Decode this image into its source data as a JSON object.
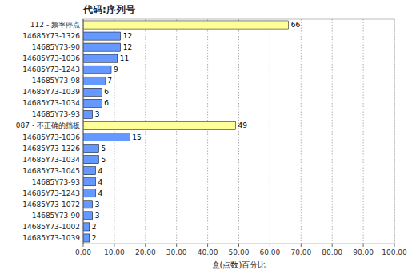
{
  "chart_data": {
    "type": "bar",
    "orientation": "horizontal",
    "title": "代码:序列号",
    "x_label": "盒(点数)百分比",
    "categories": [
      "112 - 频率停点",
      "14685Y73-1326",
      "14685Y73-90",
      "14685Y73-1036",
      "14685Y73-1243",
      "14685Y73-98",
      "14685Y73-1039",
      "14685Y73-1034",
      "14685Y73-93",
      "087 - 不正确的挡板",
      "14685Y73-1036",
      "14685Y73-1326",
      "14685Y73-1034",
      "14685Y73-1045",
      "14685Y73-93",
      "14685Y73-1243",
      "14685Y73-1072",
      "14685Y73-90",
      "14685Y73-1002",
      "14685Y73-1039"
    ],
    "values": [
      66,
      12,
      12,
      11,
      9,
      7,
      6,
      6,
      3,
      49,
      15,
      5,
      5,
      4,
      4,
      4,
      3,
      3,
      2,
      2
    ],
    "colors": [
      "#FFFF99",
      "#6699FF",
      "#6699FF",
      "#6699FF",
      "#6699FF",
      "#6699FF",
      "#6699FF",
      "#6699FF",
      "#6699FF",
      "#FFFF99",
      "#6699FF",
      "#6699FF",
      "#6699FF",
      "#6699FF",
      "#6699FF",
      "#6699FF",
      "#6699FF",
      "#6699FF",
      "#6699FF",
      "#6699FF"
    ],
    "xlim": [
      0,
      100
    ],
    "xticks": [
      {
        "value": 0,
        "label": "0.00"
      },
      {
        "value": 10,
        "label": "10.00"
      },
      {
        "value": 20,
        "label": "20.00"
      },
      {
        "value": 30,
        "label": "30.00"
      },
      {
        "value": 40,
        "label": "40.00"
      },
      {
        "value": 50,
        "label": "50.00"
      },
      {
        "value": 60,
        "label": "60.00"
      },
      {
        "value": 70,
        "label": "70.00"
      },
      {
        "value": 80,
        "label": "80.00"
      },
      {
        "value": 90,
        "label": "90.00"
      },
      {
        "value": 100,
        "label": "100.00"
      }
    ],
    "grid": true,
    "data_labels": true
  }
}
